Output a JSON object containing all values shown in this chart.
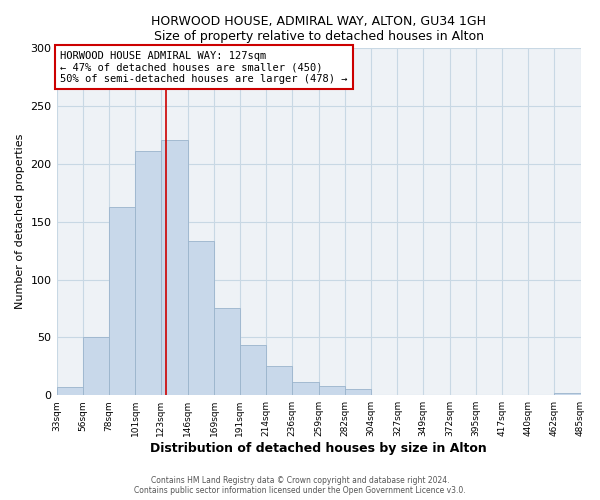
{
  "title1": "HORWOOD HOUSE, ADMIRAL WAY, ALTON, GU34 1GH",
  "title2": "Size of property relative to detached houses in Alton",
  "xlabel": "Distribution of detached houses by size in Alton",
  "ylabel": "Number of detached properties",
  "bin_edges": [
    33,
    56,
    78,
    101,
    123,
    146,
    169,
    191,
    214,
    236,
    259,
    282,
    304,
    327,
    349,
    372,
    395,
    417,
    440,
    462,
    485
  ],
  "counts": [
    7,
    50,
    163,
    211,
    221,
    133,
    75,
    43,
    25,
    11,
    8,
    5,
    0,
    0,
    0,
    0,
    0,
    0,
    0,
    2
  ],
  "bar_color": "#c8d8ea",
  "bar_edge_color": "#9ab4cc",
  "vline_x": 127,
  "vline_color": "#cc0000",
  "annotation_text": "HORWOOD HOUSE ADMIRAL WAY: 127sqm\n← 47% of detached houses are smaller (450)\n50% of semi-detached houses are larger (478) →",
  "annotation_box_color": "white",
  "annotation_box_edge": "#cc0000",
  "ylim": [
    0,
    300
  ],
  "yticks": [
    0,
    50,
    100,
    150,
    200,
    250,
    300
  ],
  "tick_labels": [
    "33sqm",
    "56sqm",
    "78sqm",
    "101sqm",
    "123sqm",
    "146sqm",
    "169sqm",
    "191sqm",
    "214sqm",
    "236sqm",
    "259sqm",
    "282sqm",
    "304sqm",
    "327sqm",
    "349sqm",
    "372sqm",
    "395sqm",
    "417sqm",
    "440sqm",
    "462sqm",
    "485sqm"
  ],
  "footer1": "Contains HM Land Registry data © Crown copyright and database right 2024.",
  "footer2": "Contains public sector information licensed under the Open Government Licence v3.0.",
  "grid_color": "#c8d8e4",
  "bg_color": "#ffffff",
  "plot_bg_color": "#eef2f6"
}
